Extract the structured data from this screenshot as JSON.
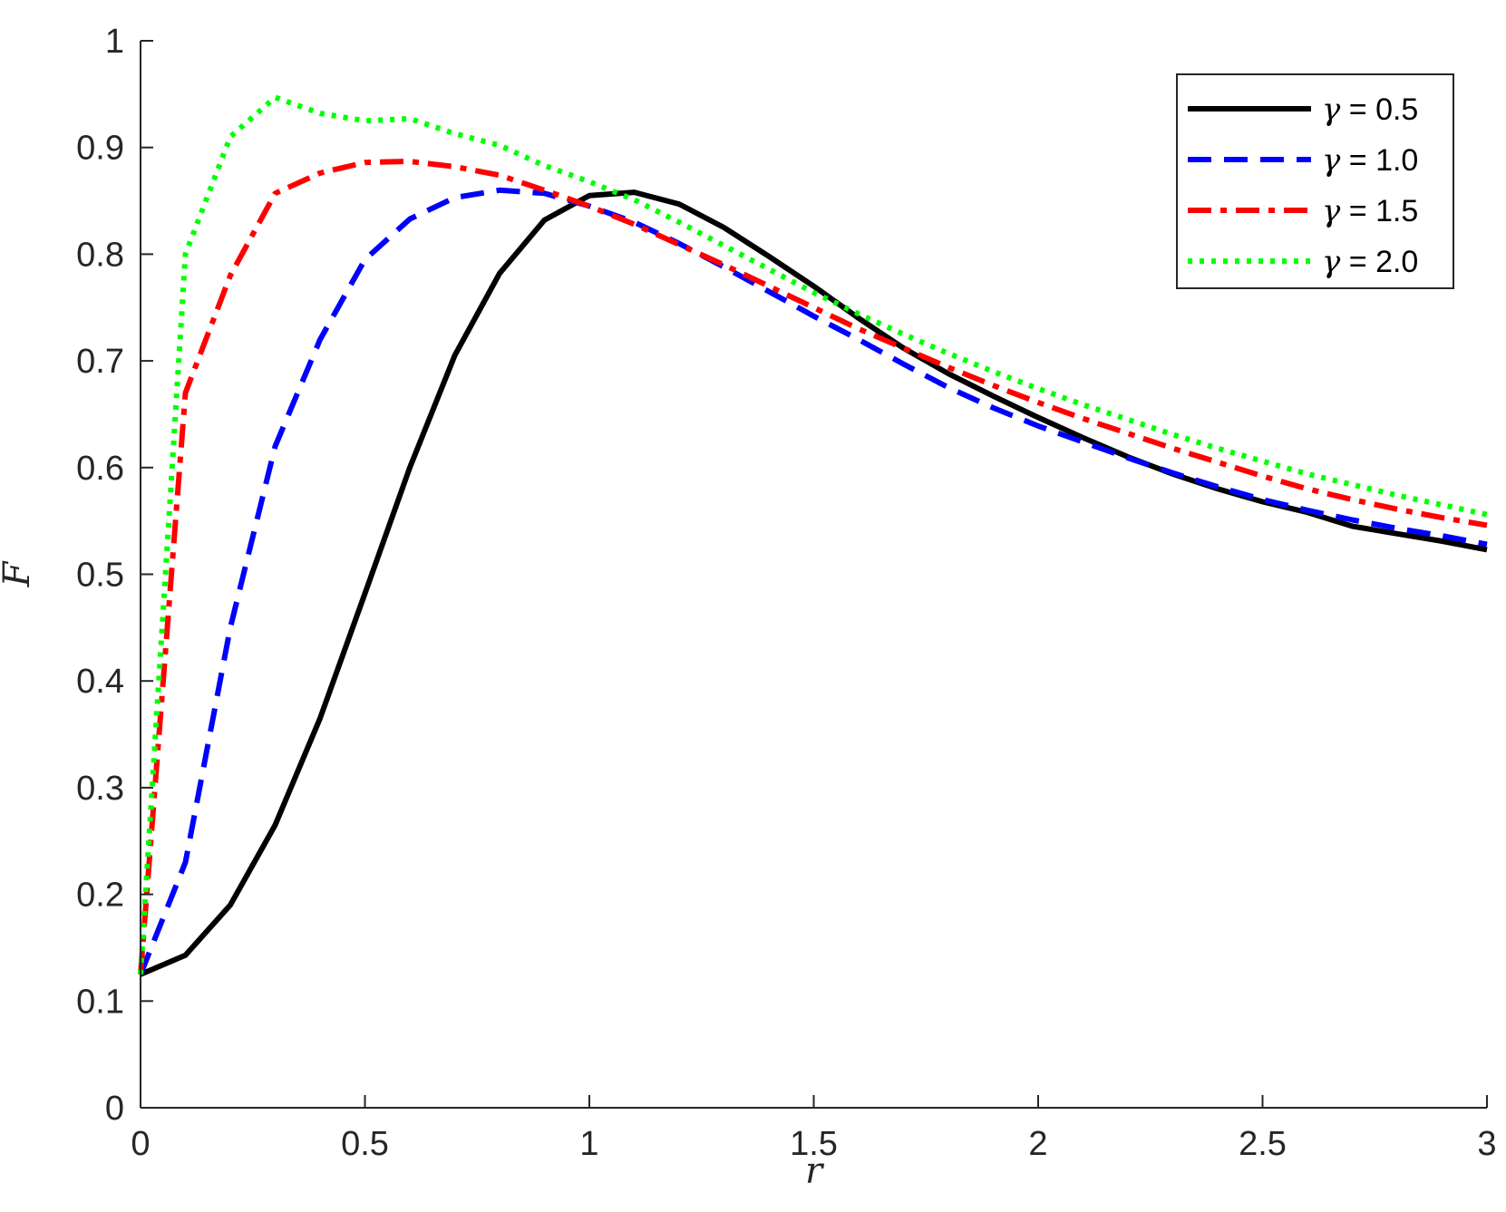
{
  "chart_data": {
    "type": "line",
    "title": "",
    "xlabel": "r",
    "ylabel": "F",
    "xlim": [
      0,
      3
    ],
    "ylim": [
      0,
      1
    ],
    "xticks": [
      0,
      0.5,
      1,
      1.5,
      2,
      2.5,
      3
    ],
    "xtick_labels": [
      "0",
      "0.5",
      "1",
      "1.5",
      "2",
      "2.5",
      "3"
    ],
    "yticks": [
      0,
      0.1,
      0.2,
      0.3,
      0.4,
      0.5,
      0.6,
      0.7,
      0.8,
      0.9,
      1
    ],
    "ytick_labels": [
      "0",
      "0.1",
      "0.2",
      "0.3",
      "0.4",
      "0.5",
      "0.6",
      "0.7",
      "0.8",
      "0.9",
      "1"
    ],
    "grid": false,
    "legend_position": "top-right",
    "x": [
      0,
      0.1,
      0.2,
      0.3,
      0.4,
      0.5,
      0.6,
      0.7,
      0.8,
      0.9,
      1.0,
      1.1,
      1.2,
      1.3,
      1.4,
      1.5,
      1.6,
      1.7,
      1.8,
      1.9,
      2.0,
      2.1,
      2.2,
      2.3,
      2.4,
      2.5,
      2.6,
      2.7,
      2.8,
      2.9,
      3.0
    ],
    "series": [
      {
        "name": "γ = 0.5",
        "color": "#000000",
        "style": "solid",
        "values": [
          0.125,
          0.143,
          0.19,
          0.265,
          0.365,
          0.482,
          0.6,
          0.705,
          0.782,
          0.832,
          0.855,
          0.858,
          0.847,
          0.825,
          0.798,
          0.77,
          0.74,
          0.712,
          0.688,
          0.667,
          0.647,
          0.628,
          0.61,
          0.594,
          0.58,
          0.568,
          0.558,
          0.545,
          0.538,
          0.531,
          0.523
        ]
      },
      {
        "name": "γ = 1.0",
        "color": "#0000ff",
        "style": "dashed",
        "values": [
          0.125,
          0.23,
          0.45,
          0.62,
          0.72,
          0.795,
          0.833,
          0.853,
          0.86,
          0.857,
          0.845,
          0.83,
          0.81,
          0.788,
          0.765,
          0.742,
          0.72,
          0.697,
          0.675,
          0.656,
          0.639,
          0.624,
          0.609,
          0.595,
          0.582,
          0.57,
          0.56,
          0.551,
          0.543,
          0.536,
          0.528
        ]
      },
      {
        "name": "γ = 1.5",
        "color": "#ff0000",
        "style": "dashdot",
        "values": [
          0.125,
          0.67,
          0.78,
          0.857,
          0.876,
          0.886,
          0.887,
          0.882,
          0.874,
          0.86,
          0.845,
          0.828,
          0.809,
          0.79,
          0.77,
          0.75,
          0.73,
          0.712,
          0.694,
          0.677,
          0.661,
          0.646,
          0.632,
          0.618,
          0.605,
          0.592,
          0.58,
          0.57,
          0.561,
          0.553,
          0.546
        ]
      },
      {
        "name": "γ = 2.0",
        "color": "#00ff00",
        "style": "dotted",
        "values": [
          0.125,
          0.8,
          0.91,
          0.947,
          0.932,
          0.925,
          0.927,
          0.913,
          0.902,
          0.883,
          0.868,
          0.851,
          0.83,
          0.808,
          0.786,
          0.764,
          0.744,
          0.725,
          0.707,
          0.69,
          0.674,
          0.659,
          0.645,
          0.631,
          0.618,
          0.606,
          0.594,
          0.584,
          0.574,
          0.565,
          0.556
        ]
      }
    ]
  }
}
